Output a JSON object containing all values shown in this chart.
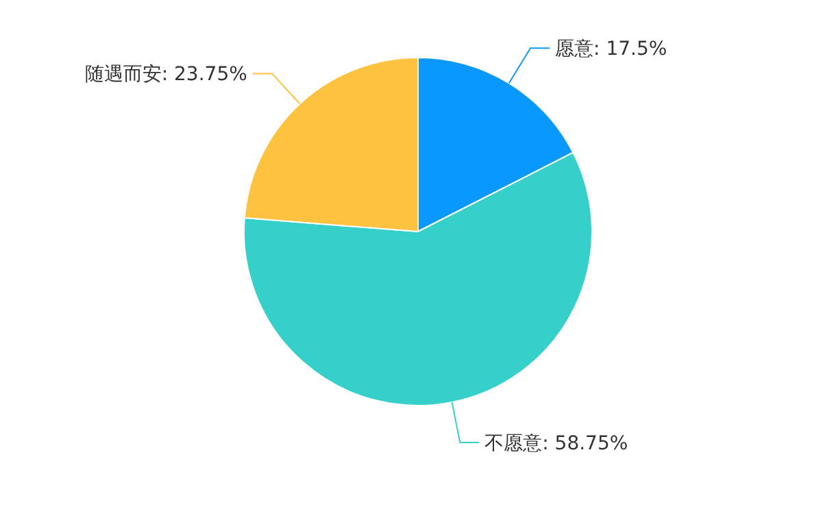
{
  "chart_data": {
    "type": "pie",
    "categories": [
      "愿意",
      "不愿意",
      "随遇而安"
    ],
    "values": [
      17.5,
      58.75,
      23.75
    ],
    "value_labels": [
      "17.5%",
      "58.75%",
      "23.75%"
    ],
    "colors": [
      "#0a98fc",
      "#35d0c9",
      "#fdc23f"
    ]
  }
}
